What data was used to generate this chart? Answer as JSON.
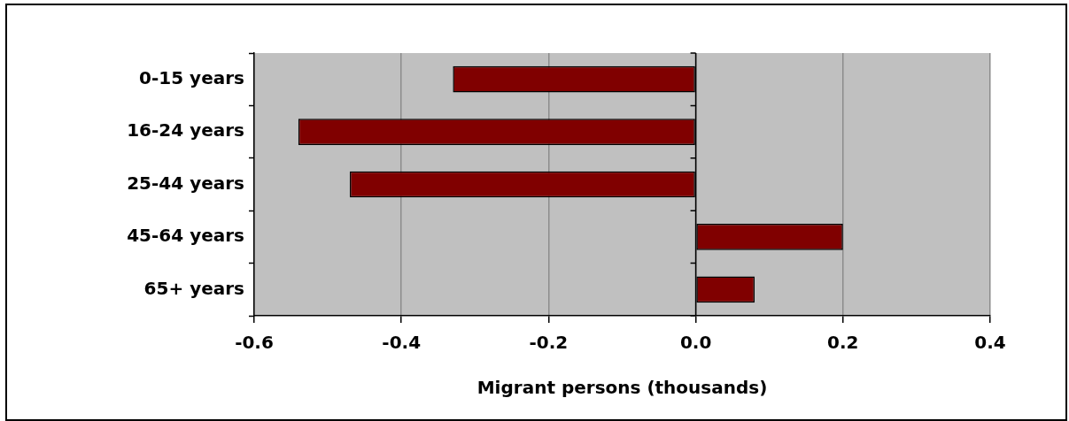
{
  "chart_data": {
    "type": "bar",
    "orientation": "horizontal",
    "xlabel": "Migrant persons (thousands)",
    "categories": [
      "0-15 years",
      "16-24 years",
      "25-44 years",
      "45-64 years",
      "65+ years"
    ],
    "values": [
      -0.33,
      -0.54,
      -0.47,
      0.2,
      0.08
    ],
    "color": "#800000",
    "xlim": [
      -0.6,
      0.4
    ],
    "xticks": [
      -0.6,
      -0.4,
      -0.2,
      {
        "value": 0,
        "label": "0.0"
      },
      0.2,
      0.4
    ],
    "grid": "x"
  }
}
